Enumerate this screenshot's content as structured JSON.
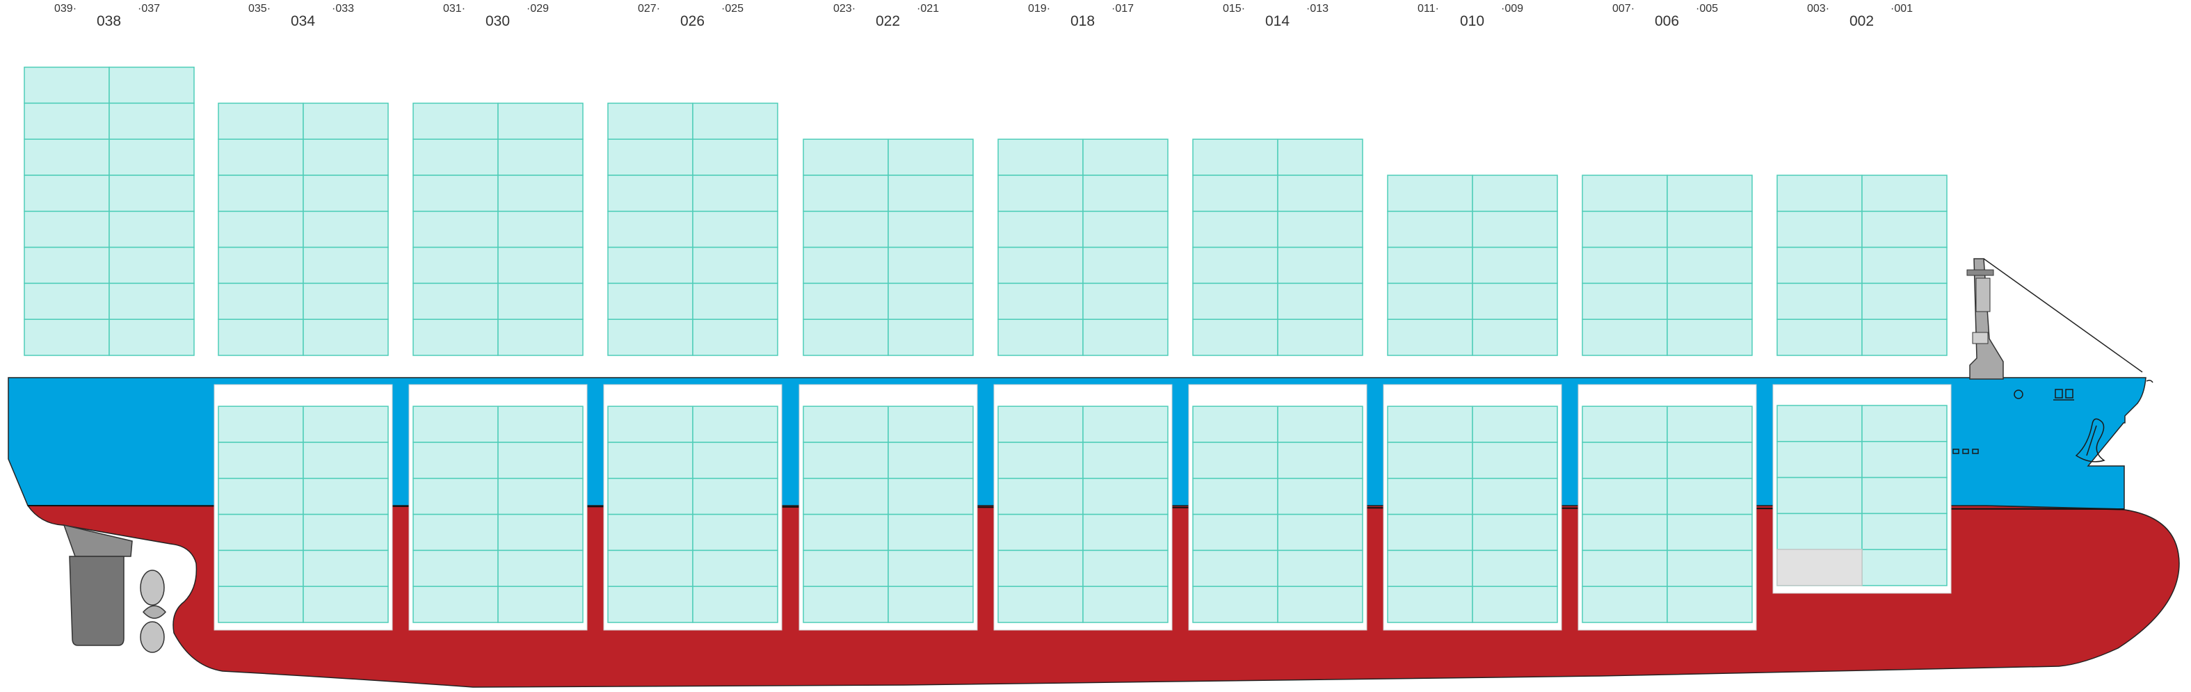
{
  "colors": {
    "hull_upper": "#00A3E0",
    "hull_lower": "#BC2228",
    "container_fill": "#CBF2EE",
    "container_stroke": "#4ECDB8",
    "empty_slot": "#E1E1E1",
    "hold_bg": "#FFFFFF",
    "superstructure": "#A8A8A8",
    "rudder": "#757575",
    "label": "#333333"
  },
  "bays": [
    {
      "label": "038",
      "aft": "039",
      "fwd": "037",
      "deck_tiers": 8,
      "hold_tiers": 0,
      "hold_empty_cells": 0
    },
    {
      "label": "034",
      "aft": "035",
      "fwd": "033",
      "deck_tiers": 7,
      "hold_tiers": 6,
      "hold_empty_cells": 0
    },
    {
      "label": "030",
      "aft": "031",
      "fwd": "029",
      "deck_tiers": 7,
      "hold_tiers": 6,
      "hold_empty_cells": 0
    },
    {
      "label": "026",
      "aft": "027",
      "fwd": "025",
      "deck_tiers": 7,
      "hold_tiers": 6,
      "hold_empty_cells": 0
    },
    {
      "label": "022",
      "aft": "023",
      "fwd": "021",
      "deck_tiers": 6,
      "hold_tiers": 6,
      "hold_empty_cells": 0
    },
    {
      "label": "018",
      "aft": "019",
      "fwd": "017",
      "deck_tiers": 6,
      "hold_tiers": 6,
      "hold_empty_cells": 0
    },
    {
      "label": "014",
      "aft": "015",
      "fwd": "013",
      "deck_tiers": 6,
      "hold_tiers": 6,
      "hold_empty_cells": 0
    },
    {
      "label": "010",
      "aft": "011",
      "fwd": "009",
      "deck_tiers": 5,
      "hold_tiers": 6,
      "hold_empty_cells": 0
    },
    {
      "label": "006",
      "aft": "007",
      "fwd": "005",
      "deck_tiers": 5,
      "hold_tiers": 6,
      "hold_empty_cells": 0
    },
    {
      "label": "002",
      "aft": "003",
      "fwd": "001",
      "deck_tiers": 5,
      "hold_tiers": 5,
      "hold_empty_cells": 1
    }
  ]
}
